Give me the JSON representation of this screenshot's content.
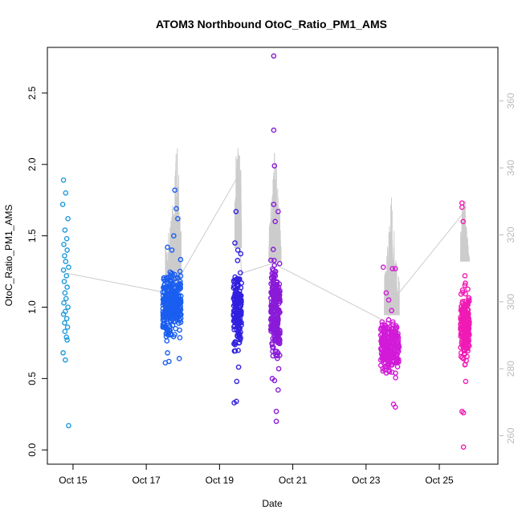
{
  "chart_data": {
    "type": "scatter",
    "title": "ATOM3 Northbound OtoC_Ratio_PM1_AMS",
    "xlabel": "Date",
    "ylabel": "OtoC_Ratio_PM1_AMS",
    "x_unit": "day of October",
    "xlim": [
      14.3,
      26.6
    ],
    "ylim": [
      -0.1,
      2.82
    ],
    "y2lim": [
      251.5,
      376
    ],
    "x_ticks": [
      {
        "value": 15,
        "label": "Oct 15"
      },
      {
        "value": 17,
        "label": "Oct 17"
      },
      {
        "value": 19,
        "label": "Oct 19"
      },
      {
        "value": 21,
        "label": "Oct 21"
      },
      {
        "value": 23,
        "label": "Oct 23"
      },
      {
        "value": 25,
        "label": "Oct 25"
      }
    ],
    "y_ticks": [
      0.0,
      0.5,
      1.0,
      1.5,
      2.0,
      2.5
    ],
    "y_tick_labels": [
      "0.0",
      "0.5",
      "1.0",
      "1.5",
      "2.0",
      "2.5"
    ],
    "y2_ticks": [
      260,
      280,
      300,
      320,
      340,
      360
    ],
    "y2_tick_labels": [
      "260",
      "280",
      "300",
      "320",
      "340",
      "360"
    ],
    "grid": false,
    "legend": "none",
    "colors": {
      "flight1": "#1e9bdc",
      "flight2": "#1a5ef0",
      "flight3": "#3020e0",
      "flight4": "#8a1ad8",
      "flight5": "#d21ad8",
      "flight6": "#f01ab4",
      "altitude_line": "#cccccc",
      "axes": "#000000",
      "right_axis": "#bbbbbb"
    },
    "series": [
      {
        "color_key": "flight1",
        "x_range": [
          14.72,
          14.92
        ],
        "points": [
          [
            14.74,
            1.89
          ],
          [
            14.8,
            1.8
          ],
          [
            14.72,
            1.72
          ],
          [
            14.86,
            1.62
          ],
          [
            14.78,
            1.54
          ],
          [
            14.83,
            1.48
          ],
          [
            14.75,
            1.44
          ],
          [
            14.84,
            1.4
          ],
          [
            14.77,
            1.36
          ],
          [
            14.8,
            1.32
          ],
          [
            14.88,
            1.28
          ],
          [
            14.74,
            1.26
          ],
          [
            14.82,
            1.22
          ],
          [
            14.76,
            1.18
          ],
          [
            14.84,
            1.14
          ],
          [
            14.78,
            1.1
          ],
          [
            14.81,
            1.06
          ],
          [
            14.75,
            1.03
          ],
          [
            14.86,
            1.0
          ],
          [
            14.79,
            0.97
          ],
          [
            14.74,
            0.95
          ],
          [
            14.83,
            0.92
          ],
          [
            14.77,
            0.89
          ],
          [
            14.85,
            0.86
          ],
          [
            14.78,
            0.83
          ],
          [
            14.82,
            0.79
          ],
          [
            14.84,
            0.77
          ],
          [
            14.73,
            0.68
          ],
          [
            14.79,
            0.63
          ],
          [
            14.88,
            0.17
          ]
        ]
      },
      {
        "color_key": "flight2",
        "x_range": [
          17.45,
          17.95
        ],
        "n_points": 320,
        "center": 1.03,
        "spread": 0.15,
        "points": [
          [
            17.78,
            1.82
          ],
          [
            17.82,
            1.69
          ],
          [
            17.86,
            1.62
          ],
          [
            17.75,
            1.5
          ],
          [
            17.58,
            1.42
          ],
          [
            17.7,
            1.4
          ],
          [
            17.62,
            0.62
          ],
          [
            17.52,
            0.61
          ],
          [
            17.58,
            0.68
          ],
          [
            17.9,
            0.64
          ]
        ]
      },
      {
        "color_key": "flight3",
        "x_range": [
          19.38,
          19.6
        ],
        "n_points": 170,
        "center": 0.98,
        "spread": 0.19,
        "points": [
          [
            19.45,
            1.67
          ],
          [
            19.42,
            1.45
          ],
          [
            19.5,
            1.4
          ],
          [
            19.47,
            0.48
          ],
          [
            19.4,
            0.33
          ],
          [
            19.46,
            0.34
          ],
          [
            19.52,
            0.58
          ]
        ]
      },
      {
        "color_key": "flight4",
        "x_range": [
          20.4,
          20.65
        ],
        "n_points": 230,
        "center": 0.97,
        "spread": 0.22,
        "points": [
          [
            20.48,
            2.76
          ],
          [
            20.48,
            2.24
          ],
          [
            20.5,
            1.99
          ],
          [
            20.6,
            1.67
          ],
          [
            20.48,
            1.72
          ],
          [
            20.52,
            1.6
          ],
          [
            20.55,
            0.27
          ],
          [
            20.55,
            0.2
          ],
          [
            20.6,
            0.42
          ],
          [
            20.44,
            0.5
          ]
        ]
      },
      {
        "color_key": "flight5",
        "x_range": [
          23.4,
          23.9
        ],
        "n_points": 230,
        "center": 0.73,
        "spread": 0.13,
        "points": [
          [
            23.47,
            1.28
          ],
          [
            23.72,
            1.27
          ],
          [
            23.8,
            1.27
          ],
          [
            23.55,
            1.1
          ],
          [
            23.62,
            1.05
          ],
          [
            23.75,
            0.32
          ],
          [
            23.8,
            0.3
          ]
        ]
      },
      {
        "color_key": "flight6",
        "x_range": [
          25.58,
          25.82
        ],
        "n_points": 190,
        "center": 0.87,
        "spread": 0.17,
        "points": [
          [
            25.62,
            1.73
          ],
          [
            25.62,
            1.7
          ],
          [
            25.65,
            1.6
          ],
          [
            25.7,
            1.22
          ],
          [
            25.62,
            0.27
          ],
          [
            25.66,
            0.26
          ],
          [
            25.66,
            0.02
          ],
          [
            25.72,
            0.48
          ]
        ]
      }
    ],
    "altitude_path": [
      [
        14.85,
        308.5
      ],
      [
        17.65,
        302.5
      ],
      [
        19.45,
        336.5
      ],
      [
        19.6,
        308.5
      ],
      [
        20.45,
        311.5
      ],
      [
        21.0,
        308.5
      ],
      [
        23.55,
        294.0
      ],
      [
        23.85,
        302.0
      ],
      [
        25.62,
        326.0
      ]
    ],
    "altitude_spikes": [
      {
        "x_range": [
          17.45,
          17.95
        ],
        "base": 306,
        "peaks": [
          [
            17.55,
            318
          ],
          [
            17.62,
            322
          ],
          [
            17.68,
            326
          ],
          [
            17.72,
            331
          ],
          [
            17.76,
            335
          ],
          [
            17.8,
            344
          ],
          [
            17.84,
            347
          ],
          [
            17.88,
            340
          ],
          [
            17.92,
            330
          ]
        ]
      },
      {
        "x_range": [
          19.42,
          19.6
        ],
        "base": 316,
        "peaks": [
          [
            19.44,
            332
          ],
          [
            19.48,
            344
          ],
          [
            19.52,
            347
          ],
          [
            19.56,
            340
          ],
          [
            19.6,
            330
          ]
        ]
      },
      {
        "x_range": [
          20.35,
          20.68
        ],
        "base": 312,
        "peaks": [
          [
            20.38,
            325
          ],
          [
            20.42,
            332
          ],
          [
            20.46,
            339
          ],
          [
            20.5,
            345
          ],
          [
            20.54,
            342
          ],
          [
            20.58,
            336
          ],
          [
            20.62,
            330
          ],
          [
            20.66,
            322
          ]
        ]
      },
      {
        "x_range": [
          23.5,
          23.92
        ],
        "base": 296,
        "peaks": [
          [
            23.52,
            310
          ],
          [
            23.58,
            318
          ],
          [
            23.64,
            326
          ],
          [
            23.7,
            333
          ],
          [
            23.76,
            322
          ],
          [
            23.82,
            314
          ],
          [
            23.88,
            308
          ]
        ]
      },
      {
        "x_range": [
          25.58,
          25.82
        ],
        "base": 312,
        "peaks": [
          [
            25.6,
            323
          ],
          [
            25.64,
            330
          ],
          [
            25.68,
            331
          ],
          [
            25.72,
            326
          ],
          [
            25.76,
            320
          ],
          [
            25.8,
            315
          ]
        ]
      }
    ]
  }
}
